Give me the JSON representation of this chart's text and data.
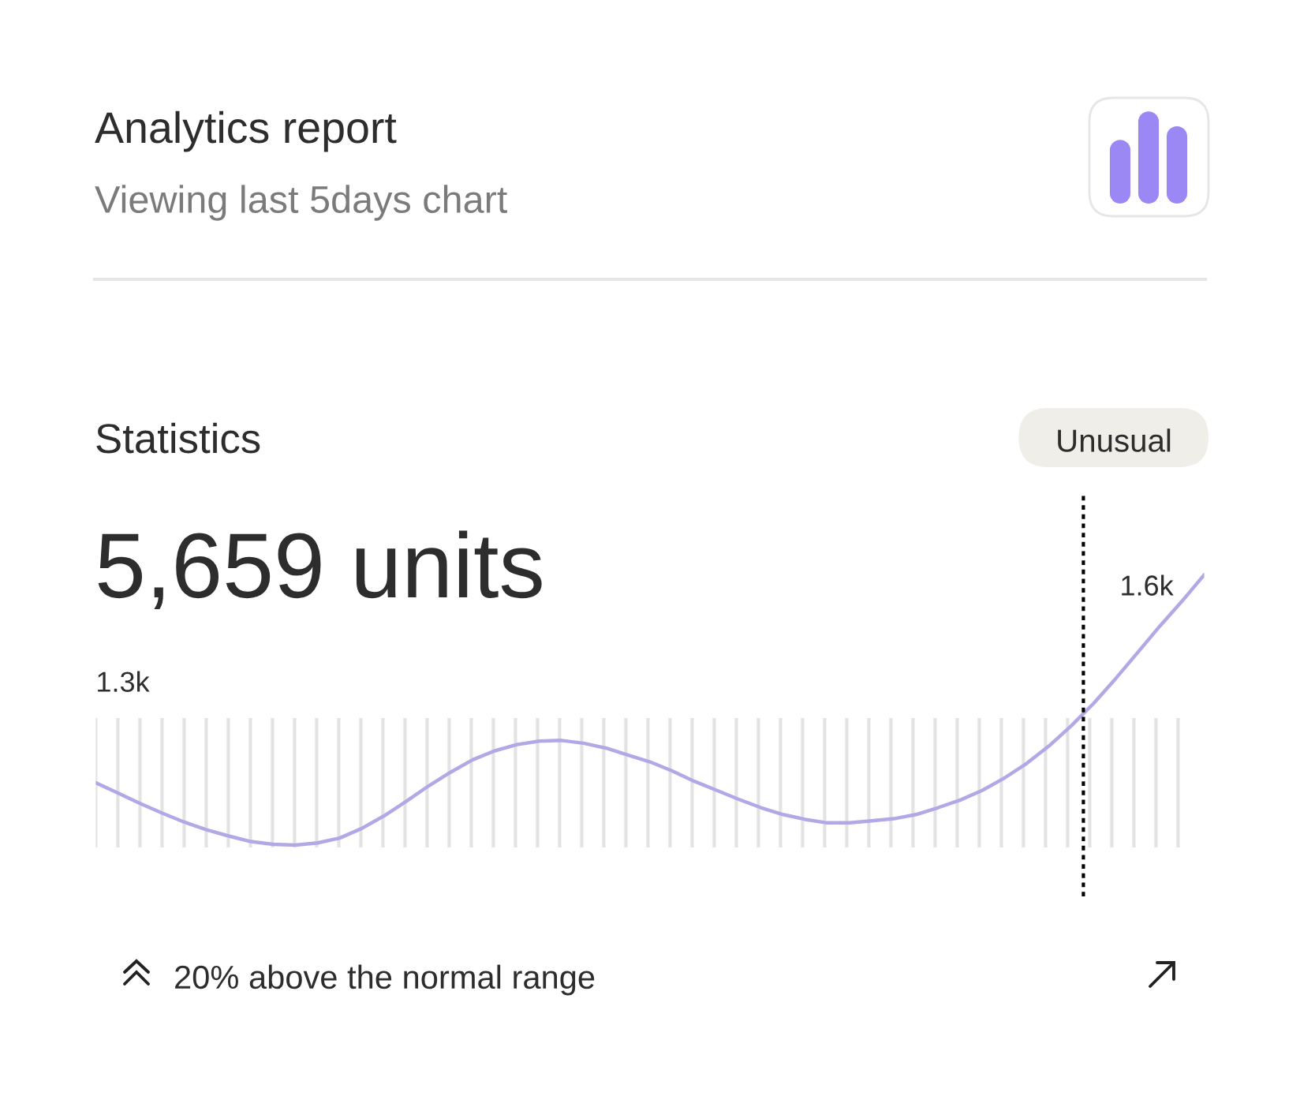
{
  "chart_data": {
    "type": "line",
    "title": "Analytics report",
    "subtitle": "Viewing last 5days chart",
    "tick_labels": false,
    "categories": [
      null,
      null,
      null,
      null,
      null,
      null,
      null,
      null,
      null,
      null,
      null,
      null,
      null,
      null,
      null,
      null,
      null,
      null,
      null,
      null,
      null,
      null,
      null,
      null,
      null,
      null,
      null,
      null,
      null,
      null,
      null,
      null,
      null,
      null,
      null,
      null,
      null,
      null,
      null,
      null,
      null,
      null,
      null,
      null,
      null,
      null,
      null,
      null,
      null,
      null,
      null
    ],
    "series": [
      {
        "color": "#b4a7e6",
        "values": [
          1300,
          1285,
          1270,
          1256,
          1243,
          1232,
          1223,
          1215,
          1211,
          1210,
          1213,
          1220,
          1234,
          1252,
          1273,
          1295,
          1315,
          1333,
          1346,
          1355,
          1360,
          1361,
          1357,
          1350,
          1340,
          1330,
          1317,
          1302,
          1289,
          1276,
          1264,
          1254,
          1247,
          1242,
          1242,
          1245,
          1248,
          1254,
          1264,
          1275,
          1289,
          1307,
          1328,
          1353,
          1382,
          1414,
          1450,
          1488,
          1526,
          1562,
          1600
        ],
        "value_labels": [
          "1.3k",
          null,
          null,
          null,
          null,
          null,
          null,
          null,
          null,
          null,
          null,
          null,
          null,
          null,
          null,
          null,
          null,
          null,
          null,
          null,
          null,
          null,
          null,
          null,
          null,
          null,
          null,
          null,
          null,
          null,
          null,
          null,
          null,
          null,
          null,
          null,
          null,
          null,
          null,
          null,
          null,
          null,
          null,
          null,
          null,
          null,
          null,
          null,
          null,
          null,
          "1.6k"
        ]
      }
    ],
    "annotations": [
      "Statistics",
      "Unusual",
      "5,659 units",
      "20% above the normal range"
    ]
  }
}
